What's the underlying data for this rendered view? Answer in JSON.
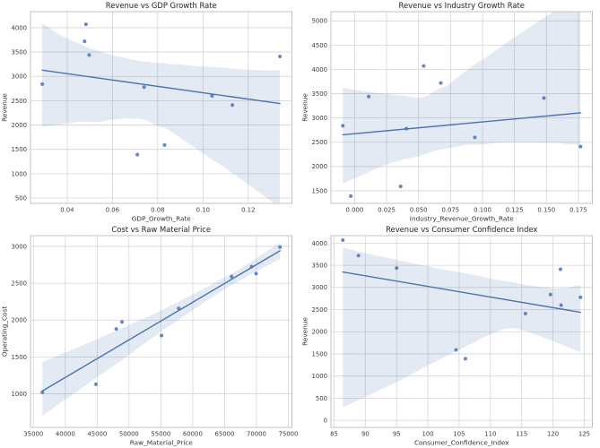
{
  "theme": {
    "accent_color": "#4c72b0",
    "band_opacity": 0.15,
    "point_opacity": 0.85,
    "grid_color": "#d5d5d5",
    "spine_color": "#c3c3c3",
    "background": "#ffffff",
    "title_color": "#262626",
    "tick_color": "#3d3d3d",
    "label_color": "#333333"
  },
  "chart_data": [
    {
      "type": "scatter",
      "title": "Revenue vs GDP Growth Rate",
      "xlabel": "GDP_Growth_Rate",
      "ylabel": "Revenue",
      "regression": true,
      "ci_level": 95,
      "grid": true,
      "legend": false,
      "xlim": [
        0.0238,
        0.1393
      ],
      "ylim": [
        390,
        4330
      ],
      "xticks": [
        0.04,
        0.06,
        0.08,
        0.1,
        0.12
      ],
      "xtick_labels": [
        "0.04",
        "0.06",
        "0.08",
        "0.10",
        "0.12"
      ],
      "yticks": [
        500,
        1000,
        1500,
        2000,
        2500,
        3000,
        3500,
        4000
      ],
      "ytick_labels": [
        "500",
        "1000",
        "1500",
        "2000",
        "2500",
        "3000",
        "3500",
        "4000"
      ],
      "points": [
        [
          0.029,
          2840
        ],
        [
          0.0483,
          4070
        ],
        [
          0.0477,
          3720
        ],
        [
          0.0497,
          3440
        ],
        [
          0.071,
          1390
        ],
        [
          0.074,
          2780
        ],
        [
          0.083,
          1590
        ],
        [
          0.104,
          2600
        ],
        [
          0.113,
          2410
        ],
        [
          0.134,
          3410
        ]
      ]
    },
    {
      "type": "scatter",
      "title": "Revenue vs Industry Growth Rate",
      "xlabel": "Industry_Revenue_Growth_Rate",
      "ylabel": "Revenue",
      "regression": true,
      "ci_level": 95,
      "grid": true,
      "legend": false,
      "xlim": [
        -0.0185,
        0.1859
      ],
      "ylim": [
        1240,
        5190
      ],
      "xticks": [
        0.0,
        0.025,
        0.05,
        0.075,
        0.1,
        0.125,
        0.15,
        0.175
      ],
      "xtick_labels": [
        "0.000",
        "0.025",
        "0.050",
        "0.075",
        "0.100",
        "0.125",
        "0.150",
        "0.175"
      ],
      "yticks": [
        1500,
        2000,
        2500,
        3000,
        3500,
        4000,
        4500,
        5000
      ],
      "ytick_labels": [
        "1500",
        "2000",
        "2500",
        "3000",
        "3500",
        "4000",
        "4500",
        "5000"
      ],
      "points": [
        [
          -0.0092,
          2840
        ],
        [
          -0.003,
          1390
        ],
        [
          0.011,
          3440
        ],
        [
          0.036,
          1590
        ],
        [
          0.0405,
          2780
        ],
        [
          0.054,
          4070
        ],
        [
          0.0674,
          3720
        ],
        [
          0.094,
          2600
        ],
        [
          0.148,
          3410
        ],
        [
          0.1766,
          2410
        ]
      ]
    },
    {
      "type": "scatter",
      "title": "Cost vs Raw Material Price",
      "xlabel": "Raw_Material_Price",
      "ylabel": "Operating_Cost",
      "regression": true,
      "ci_level": 95,
      "grid": true,
      "legend": false,
      "xlim": [
        34540,
        75570
      ],
      "ylim": [
        545,
        3145
      ],
      "xticks": [
        35000,
        40000,
        45000,
        50000,
        55000,
        60000,
        65000,
        70000,
        75000
      ],
      "xtick_labels": [
        "35000",
        "40000",
        "45000",
        "50000",
        "55000",
        "60000",
        "65000",
        "70000",
        "75000"
      ],
      "yticks": [
        1000,
        1500,
        2000,
        2500,
        3000
      ],
      "ytick_labels": [
        "1000",
        "1500",
        "2000",
        "2500",
        "3000"
      ],
      "points": [
        [
          36400,
          1020
        ],
        [
          44800,
          1130
        ],
        [
          48000,
          1880
        ],
        [
          48900,
          1975
        ],
        [
          55100,
          1790
        ],
        [
          57800,
          2160
        ],
        [
          66100,
          2590
        ],
        [
          69250,
          2725
        ],
        [
          69950,
          2630
        ],
        [
          73700,
          2990
        ]
      ]
    },
    {
      "type": "scatter",
      "title": "Revenue vs Consumer Confidence Index",
      "xlabel": "Consumer_Confidence_Index",
      "ylabel": "Revenue",
      "regression": true,
      "ci_level": 95,
      "grid": true,
      "legend": false,
      "xlim": [
        84.5,
        126.3
      ],
      "ylim": [
        -160,
        4170
      ],
      "xticks": [
        85,
        90,
        95,
        100,
        105,
        110,
        115,
        120,
        125
      ],
      "xtick_labels": [
        "85",
        "90",
        "95",
        "100",
        "105",
        "110",
        "115",
        "120",
        "125"
      ],
      "yticks": [
        0,
        500,
        1000,
        1500,
        2000,
        2500,
        3000,
        3500,
        4000
      ],
      "ytick_labels": [
        "0",
        "500",
        "1000",
        "1500",
        "2000",
        "2500",
        "3000",
        "3500",
        "4000"
      ],
      "points": [
        [
          86.4,
          4070
        ],
        [
          88.9,
          3720
        ],
        [
          95.0,
          3440
        ],
        [
          104.5,
          1590
        ],
        [
          106.0,
          1390
        ],
        [
          115.6,
          2410
        ],
        [
          119.6,
          2840
        ],
        [
          121.2,
          3410
        ],
        [
          121.3,
          2600
        ],
        [
          124.4,
          2780
        ]
      ]
    }
  ]
}
